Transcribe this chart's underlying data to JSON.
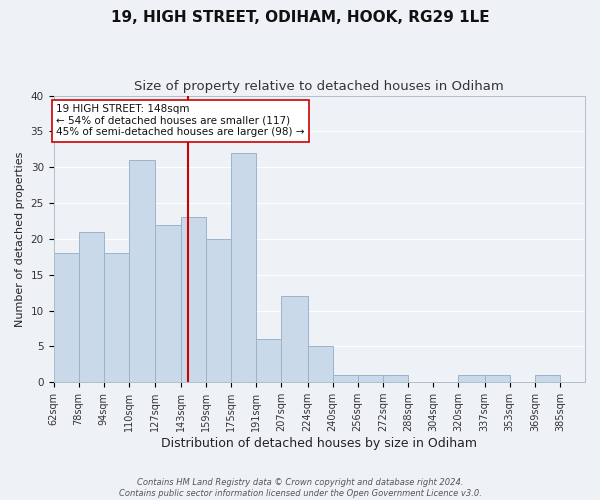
{
  "title": "19, HIGH STREET, ODIHAM, HOOK, RG29 1LE",
  "subtitle": "Size of property relative to detached houses in Odiham",
  "xlabel": "Distribution of detached houses by size in Odiham",
  "ylabel": "Number of detached properties",
  "bar_color": "#c9d9ea",
  "bar_edge_color": "#9ab4cc",
  "background_color": "#eef2f7",
  "grid_color": "#ffffff",
  "vline_x": 148,
  "vline_color": "#cc0000",
  "annotation_line1": "19 HIGH STREET: 148sqm",
  "annotation_line2": "← 54% of detached houses are smaller (117)",
  "annotation_line3": "45% of semi-detached houses are larger (98) →",
  "annotation_box_color": "#ffffff",
  "annotation_box_edge": "#cc0000",
  "bins_left": [
    62,
    78,
    94,
    110,
    127,
    143,
    159,
    175,
    191,
    207,
    224,
    240,
    256,
    272,
    288,
    304,
    320,
    337,
    353,
    369
  ],
  "bin_width": [
    16,
    16,
    16,
    17,
    16,
    16,
    16,
    16,
    16,
    17,
    16,
    16,
    16,
    16,
    16,
    16,
    17,
    16,
    16,
    16
  ],
  "counts": [
    18,
    21,
    18,
    31,
    22,
    23,
    20,
    32,
    6,
    12,
    5,
    1,
    1,
    1,
    0,
    0,
    1,
    1,
    0,
    1
  ],
  "tick_labels": [
    "62sqm",
    "78sqm",
    "94sqm",
    "110sqm",
    "127sqm",
    "143sqm",
    "159sqm",
    "175sqm",
    "191sqm",
    "207sqm",
    "224sqm",
    "240sqm",
    "256sqm",
    "272sqm",
    "288sqm",
    "304sqm",
    "320sqm",
    "337sqm",
    "353sqm",
    "369sqm",
    "385sqm"
  ],
  "ylim": [
    0,
    40
  ],
  "yticks": [
    0,
    5,
    10,
    15,
    20,
    25,
    30,
    35,
    40
  ],
  "footer": "Contains HM Land Registry data © Crown copyright and database right 2024.\nContains public sector information licensed under the Open Government Licence v3.0.",
  "title_fontsize": 11,
  "subtitle_fontsize": 9.5,
  "xlabel_fontsize": 9,
  "ylabel_fontsize": 8,
  "tick_fontsize": 7,
  "annotation_fontsize": 7.5,
  "footer_fontsize": 6
}
